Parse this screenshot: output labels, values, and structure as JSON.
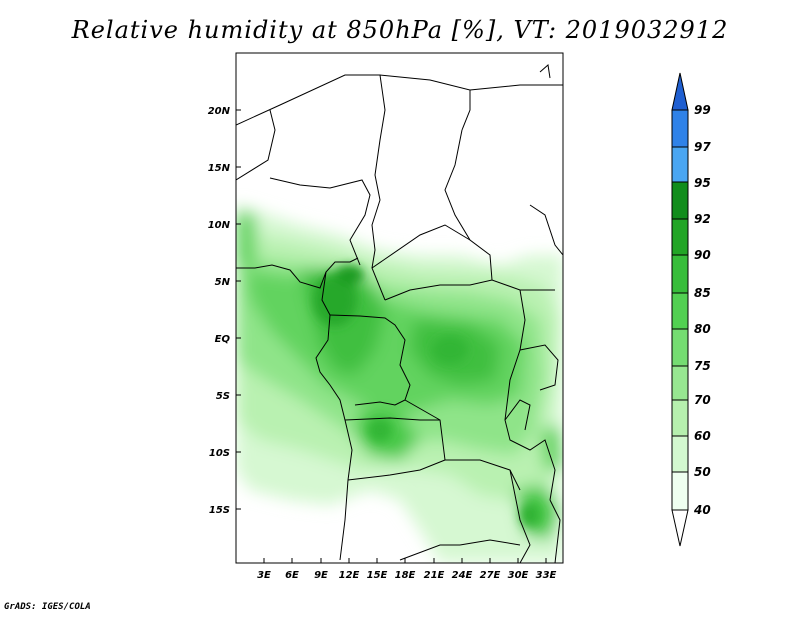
{
  "title": "Relative humidity at 850hPa [%], VT: 2019032912",
  "credit": "GrADS: IGES/COLA",
  "map": {
    "lat_labels": [
      "20N",
      "15N",
      "10N",
      "5N",
      "EQ",
      "5S",
      "10S",
      "15S"
    ],
    "lon_labels": [
      "3E",
      "6E",
      "9E",
      "12E",
      "15E",
      "18E",
      "21E",
      "24E",
      "27E",
      "30E",
      "33E"
    ]
  },
  "colorbar": {
    "levels": [
      "99",
      "97",
      "95",
      "92",
      "90",
      "85",
      "80",
      "75",
      "70",
      "60",
      "50",
      "40"
    ],
    "colors": [
      "#1f5fd1",
      "#2f82e8",
      "#4aa6f2",
      "#118d1c",
      "#22a526",
      "#37bd3a",
      "#52d052",
      "#75dc72",
      "#97e791",
      "#b6f0ae",
      "#d3f8cf",
      "#effff0",
      "#ffffff"
    ]
  }
}
